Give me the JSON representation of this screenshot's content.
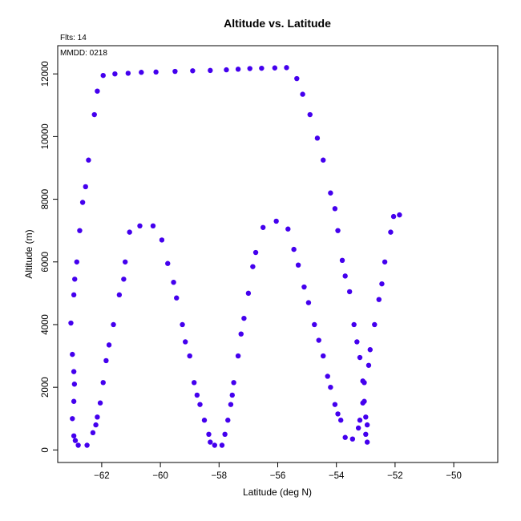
{
  "chart_data": {
    "type": "scatter",
    "title": "Altitude vs. Latitude",
    "xlabel": "Latitude (deg N)",
    "ylabel": "Altitude (m)",
    "xlim": [
      -63.5,
      -48.5
    ],
    "ylim": [
      -400,
      12900
    ],
    "xticks": [
      -62,
      -60,
      -58,
      -56,
      -54,
      -52,
      -50
    ],
    "yticks": [
      0,
      2000,
      4000,
      6000,
      8000,
      10000,
      12000
    ],
    "grid": false,
    "marker_color": "#4400ee",
    "annotations": {
      "top_left_outside": "Flts: 14",
      "top_left_inside": "MMDD: 0218"
    },
    "series": [
      {
        "points": [
          [
            -62.8,
            150
          ],
          [
            -62.9,
            300
          ],
          [
            -62.95,
            450
          ],
          [
            -63.0,
            1000
          ],
          [
            -62.95,
            1550
          ],
          [
            -62.93,
            2100
          ],
          [
            -62.95,
            2500
          ],
          [
            -63.0,
            3050
          ],
          [
            -63.05,
            4050
          ],
          [
            -62.95,
            4950
          ],
          [
            -62.92,
            5450
          ],
          [
            -62.85,
            6000
          ],
          [
            -62.75,
            7000
          ],
          [
            -62.65,
            7900
          ],
          [
            -62.55,
            8400
          ],
          [
            -62.45,
            9250
          ],
          [
            -62.25,
            10700
          ],
          [
            -62.15,
            11450
          ],
          [
            -61.95,
            11950
          ],
          [
            -61.55,
            12000
          ],
          [
            -61.1,
            12020
          ],
          [
            -60.65,
            12050
          ],
          [
            -60.15,
            12060
          ],
          [
            -59.5,
            12080
          ],
          [
            -58.9,
            12100
          ],
          [
            -58.3,
            12110
          ],
          [
            -57.75,
            12130
          ],
          [
            -57.35,
            12150
          ],
          [
            -56.95,
            12170
          ],
          [
            -56.55,
            12180
          ],
          [
            -56.1,
            12190
          ],
          [
            -55.7,
            12200
          ],
          [
            -55.35,
            11850
          ],
          [
            -55.15,
            11350
          ],
          [
            -54.9,
            10700
          ],
          [
            -54.65,
            9950
          ],
          [
            -54.45,
            9250
          ],
          [
            -54.2,
            8200
          ],
          [
            -54.05,
            7700
          ],
          [
            -53.95,
            7000
          ],
          [
            -53.8,
            6050
          ],
          [
            -53.7,
            5550
          ],
          [
            -53.55,
            5050
          ],
          [
            -53.4,
            4000
          ],
          [
            -53.3,
            3450
          ],
          [
            -53.2,
            2950
          ],
          [
            -53.1,
            2200
          ],
          [
            -53.05,
            1550
          ],
          [
            -53.0,
            1050
          ],
          [
            -52.95,
            800
          ],
          [
            -53.0,
            500
          ],
          [
            -52.95,
            250
          ]
        ]
      },
      {
        "points": [
          [
            -62.5,
            150
          ],
          [
            -62.3,
            550
          ],
          [
            -62.2,
            800
          ],
          [
            -62.15,
            1050
          ],
          [
            -62.05,
            1500
          ],
          [
            -61.95,
            2150
          ],
          [
            -61.85,
            2850
          ],
          [
            -61.75,
            3350
          ],
          [
            -61.6,
            4000
          ],
          [
            -61.4,
            4950
          ],
          [
            -61.25,
            5450
          ],
          [
            -61.2,
            6000
          ],
          [
            -61.05,
            6950
          ],
          [
            -60.7,
            7150
          ],
          [
            -60.25,
            7150
          ],
          [
            -59.95,
            6700
          ],
          [
            -59.75,
            5950
          ],
          [
            -59.55,
            5350
          ],
          [
            -59.45,
            4850
          ],
          [
            -59.25,
            4000
          ],
          [
            -59.15,
            3450
          ],
          [
            -59.0,
            3000
          ],
          [
            -58.85,
            2150
          ],
          [
            -58.75,
            1750
          ],
          [
            -58.65,
            1450
          ],
          [
            -58.5,
            950
          ],
          [
            -58.35,
            500
          ],
          [
            -58.3,
            250
          ],
          [
            -58.15,
            150
          ],
          [
            -57.9,
            150
          ],
          [
            -57.8,
            500
          ],
          [
            -57.7,
            950
          ],
          [
            -57.6,
            1450
          ],
          [
            -57.55,
            1750
          ],
          [
            -57.5,
            2150
          ],
          [
            -57.35,
            3000
          ],
          [
            -57.25,
            3700
          ],
          [
            -57.15,
            4200
          ],
          [
            -57.0,
            5000
          ],
          [
            -56.85,
            5850
          ],
          [
            -56.75,
            6300
          ],
          [
            -56.5,
            7100
          ],
          [
            -56.05,
            7300
          ],
          [
            -55.65,
            7050
          ],
          [
            -55.45,
            6400
          ],
          [
            -55.3,
            5900
          ],
          [
            -55.1,
            5200
          ],
          [
            -54.95,
            4700
          ],
          [
            -54.75,
            4000
          ],
          [
            -54.6,
            3500
          ],
          [
            -54.45,
            3000
          ],
          [
            -54.3,
            2350
          ],
          [
            -54.2,
            2000
          ],
          [
            -54.05,
            1450
          ],
          [
            -53.95,
            1150
          ],
          [
            -53.85,
            950
          ],
          [
            -53.7,
            400
          ],
          [
            -53.45,
            350
          ],
          [
            -53.25,
            700
          ],
          [
            -53.2,
            950
          ],
          [
            -53.1,
            1500
          ],
          [
            -53.05,
            2150
          ],
          [
            -52.9,
            2700
          ],
          [
            -52.85,
            3200
          ],
          [
            -52.7,
            4000
          ],
          [
            -52.55,
            4800
          ],
          [
            -52.45,
            5300
          ],
          [
            -52.35,
            6000
          ],
          [
            -52.15,
            6950
          ],
          [
            -52.05,
            7450
          ],
          [
            -51.85,
            7500
          ]
        ]
      }
    ]
  }
}
